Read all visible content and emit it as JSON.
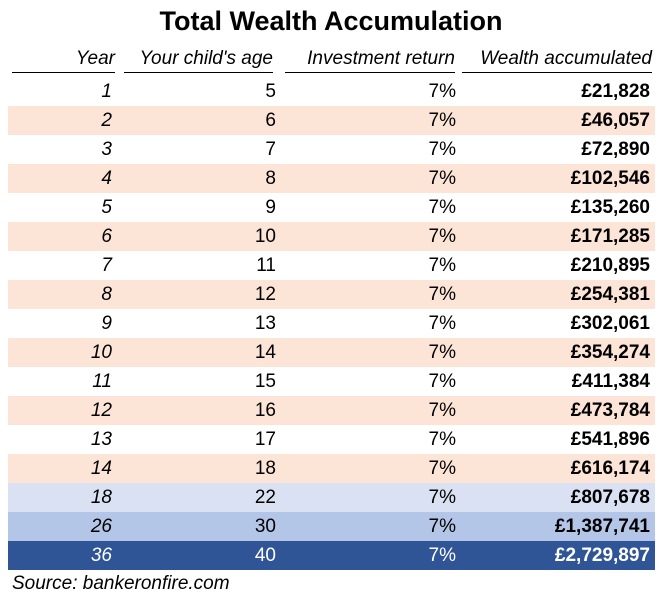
{
  "title": "Total Wealth Accumulation",
  "source": "Source: bankeronfire.com",
  "colors": {
    "peach": "#FCE4D6",
    "light_blue": "#D9E1F2",
    "mid_blue": "#B4C6E7",
    "dark_blue": "#2F5597"
  },
  "chart_data": {
    "type": "table",
    "title": "Total Wealth Accumulation",
    "columns": [
      "Year",
      "Your child's age",
      "Investment return",
      "Wealth accumulated"
    ],
    "rows": [
      [
        "1",
        "5",
        "7%",
        "£21,828"
      ],
      [
        "2",
        "6",
        "7%",
        "£46,057"
      ],
      [
        "3",
        "7",
        "7%",
        "£72,890"
      ],
      [
        "4",
        "8",
        "7%",
        "£102,546"
      ],
      [
        "5",
        "9",
        "7%",
        "£135,260"
      ],
      [
        "6",
        "10",
        "7%",
        "£171,285"
      ],
      [
        "7",
        "11",
        "7%",
        "£210,895"
      ],
      [
        "8",
        "12",
        "7%",
        "£254,381"
      ],
      [
        "9",
        "13",
        "7%",
        "£302,061"
      ],
      [
        "10",
        "14",
        "7%",
        "£354,274"
      ],
      [
        "11",
        "15",
        "7%",
        "£411,384"
      ],
      [
        "12",
        "16",
        "7%",
        "£473,784"
      ],
      [
        "13",
        "17",
        "7%",
        "£541,896"
      ],
      [
        "14",
        "18",
        "7%",
        "£616,174"
      ],
      [
        "18",
        "22",
        "7%",
        "£807,678"
      ],
      [
        "26",
        "30",
        "7%",
        "£1,387,741"
      ],
      [
        "36",
        "40",
        "7%",
        "£2,729,897"
      ]
    ]
  }
}
